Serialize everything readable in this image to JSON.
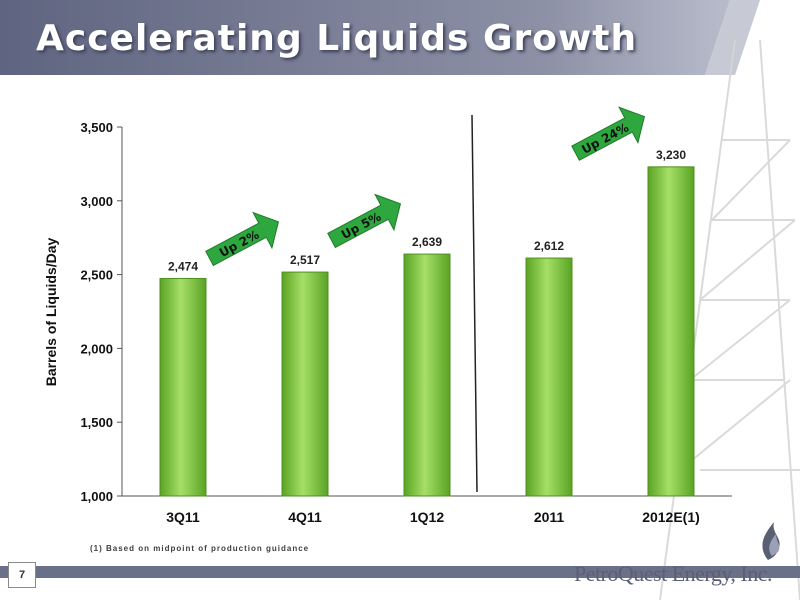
{
  "slide": {
    "title": "Accelerating Liquids Growth",
    "footnote": "(1) Based on midpoint of production guidance",
    "page_number": "7",
    "brand": "PetroQuest Energy, Inc."
  },
  "colors": {
    "header_band": "#6b7089",
    "bar_fill": "#7dc835",
    "arrow_fill": "#2ea83e",
    "footer_band": "#6b7089"
  },
  "chart_data": {
    "type": "bar",
    "title": "",
    "xlabel": "",
    "ylabel": "Barrels of Liquids/Day",
    "categories": [
      "3Q11",
      "4Q11",
      "1Q12",
      "2011",
      "2012E(1)"
    ],
    "values": [
      2474,
      2517,
      2639,
      2612,
      3230
    ],
    "value_labels": [
      "2,474",
      "2,517",
      "2,639",
      "2,612",
      "3,230"
    ],
    "ylim": [
      1000,
      3500
    ],
    "yticks": [
      1000,
      1500,
      2000,
      2500,
      3000,
      3500
    ],
    "ytick_labels": [
      "1,000",
      "1,500",
      "2,000",
      "2,500",
      "3,000",
      "3,500"
    ],
    "grid": false,
    "legend": "none",
    "divider_after_category": "1Q12",
    "annotations": [
      {
        "text": "Up 2%",
        "from": "3Q11",
        "to": "4Q11"
      },
      {
        "text": "Up 5%",
        "from": "4Q11",
        "to": "1Q12"
      },
      {
        "text": "Up 24%",
        "from": "2011",
        "to": "2012E(1)"
      }
    ]
  }
}
